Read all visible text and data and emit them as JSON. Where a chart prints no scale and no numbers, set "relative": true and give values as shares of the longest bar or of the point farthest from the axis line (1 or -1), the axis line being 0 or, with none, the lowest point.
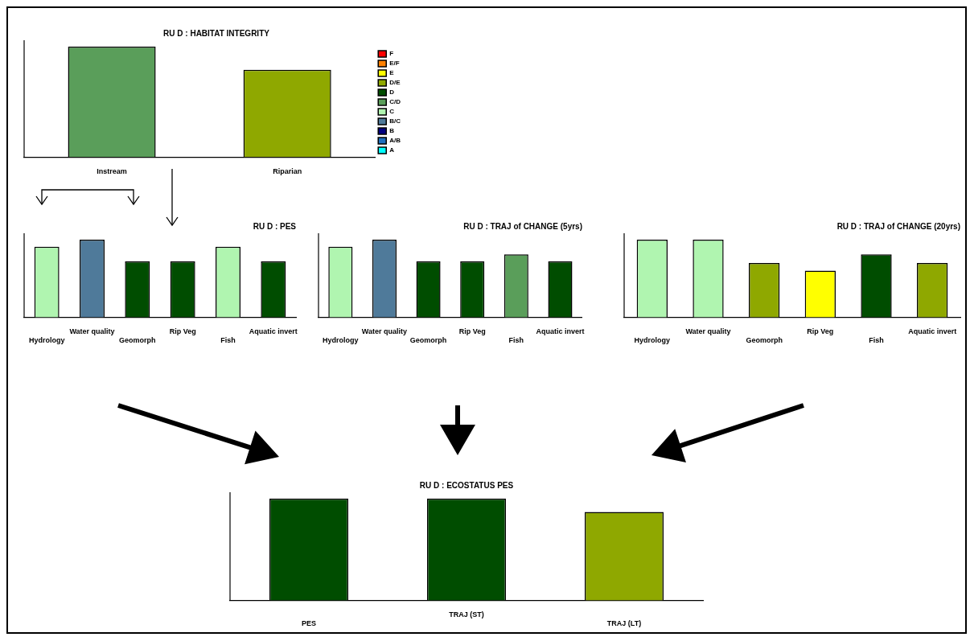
{
  "chart_data": [
    {
      "type": "bar",
      "title": "RU D : HABITAT INTEGRITY",
      "categories": [
        "Instream",
        "Riparian"
      ],
      "relative": true,
      "stacked": true,
      "legend": "right",
      "series": [
        {
          "name": "F",
          "color": "#ff0000",
          "values": [
            null,
            null
          ]
        },
        {
          "name": "E/F",
          "color": "#ff8000",
          "values": [
            null,
            null
          ]
        },
        {
          "name": "E",
          "color": "#ffff00",
          "values": [
            null,
            null
          ]
        },
        {
          "name": "D/E",
          "color": "#8fa800",
          "values": [
            null,
            0.79
          ]
        },
        {
          "name": "D",
          "color": "#004d00",
          "values": [
            null,
            null
          ]
        },
        {
          "name": "C/D",
          "color": "#5a9e5a",
          "values": [
            1,
            null
          ]
        },
        {
          "name": "C",
          "color": "#b0f5b0",
          "values": [
            null,
            null
          ]
        },
        {
          "name": "B/C",
          "color": "#4f7a9a",
          "values": [
            null,
            null
          ]
        },
        {
          "name": "B",
          "color": "#000080",
          "values": [
            null,
            null
          ]
        },
        {
          "name": "A/B",
          "color": "#1e6fbf",
          "values": [
            null,
            null
          ]
        },
        {
          "name": "A",
          "color": "#00ffff",
          "values": [
            null,
            null
          ]
        }
      ]
    },
    {
      "type": "bar",
      "title": "RU D : PES",
      "categories": [
        "Hydrology",
        "Water quality",
        "Geomorph",
        "Rip Veg",
        "Fish",
        "Aquatic invert"
      ],
      "relative": true,
      "values": [
        0.91,
        1,
        0.72,
        0.72,
        0.91,
        0.72
      ],
      "colors": [
        "#b0f5b0",
        "#4f7a9a",
        "#004d00",
        "#004d00",
        "#b0f5b0",
        "#004d00"
      ]
    },
    {
      "type": "bar",
      "title": "RU D : TRAJ of CHANGE (5yrs)",
      "categories": [
        "Hydrology",
        "Water quality",
        "Geomorph",
        "Rip Veg",
        "Fish",
        "Aquatic invert"
      ],
      "relative": true,
      "values": [
        0.91,
        1,
        0.72,
        0.72,
        0.81,
        0.72
      ],
      "colors": [
        "#b0f5b0",
        "#4f7a9a",
        "#004d00",
        "#004d00",
        "#5a9e5a",
        "#004d00"
      ]
    },
    {
      "type": "bar",
      "title": "RU D : TRAJ of CHANGE (20yrs)",
      "categories": [
        "Hydrology",
        "Water quality",
        "Geomorph",
        "Rip Veg",
        "Fish",
        "Aquatic invert"
      ],
      "relative": true,
      "values": [
        1,
        1,
        0.7,
        0.6,
        0.81,
        0.7
      ],
      "colors": [
        "#b0f5b0",
        "#b0f5b0",
        "#8fa800",
        "#ffff00",
        "#004d00",
        "#8fa800"
      ]
    },
    {
      "type": "bar",
      "title": "RU D : ECOSTATUS PES",
      "categories": [
        "PES",
        "TRAJ (ST)",
        "TRAJ (LT)"
      ],
      "relative": true,
      "values": [
        1,
        1,
        0.87
      ],
      "colors": [
        "#004d00",
        "#004d00",
        "#8fa800"
      ]
    }
  ]
}
